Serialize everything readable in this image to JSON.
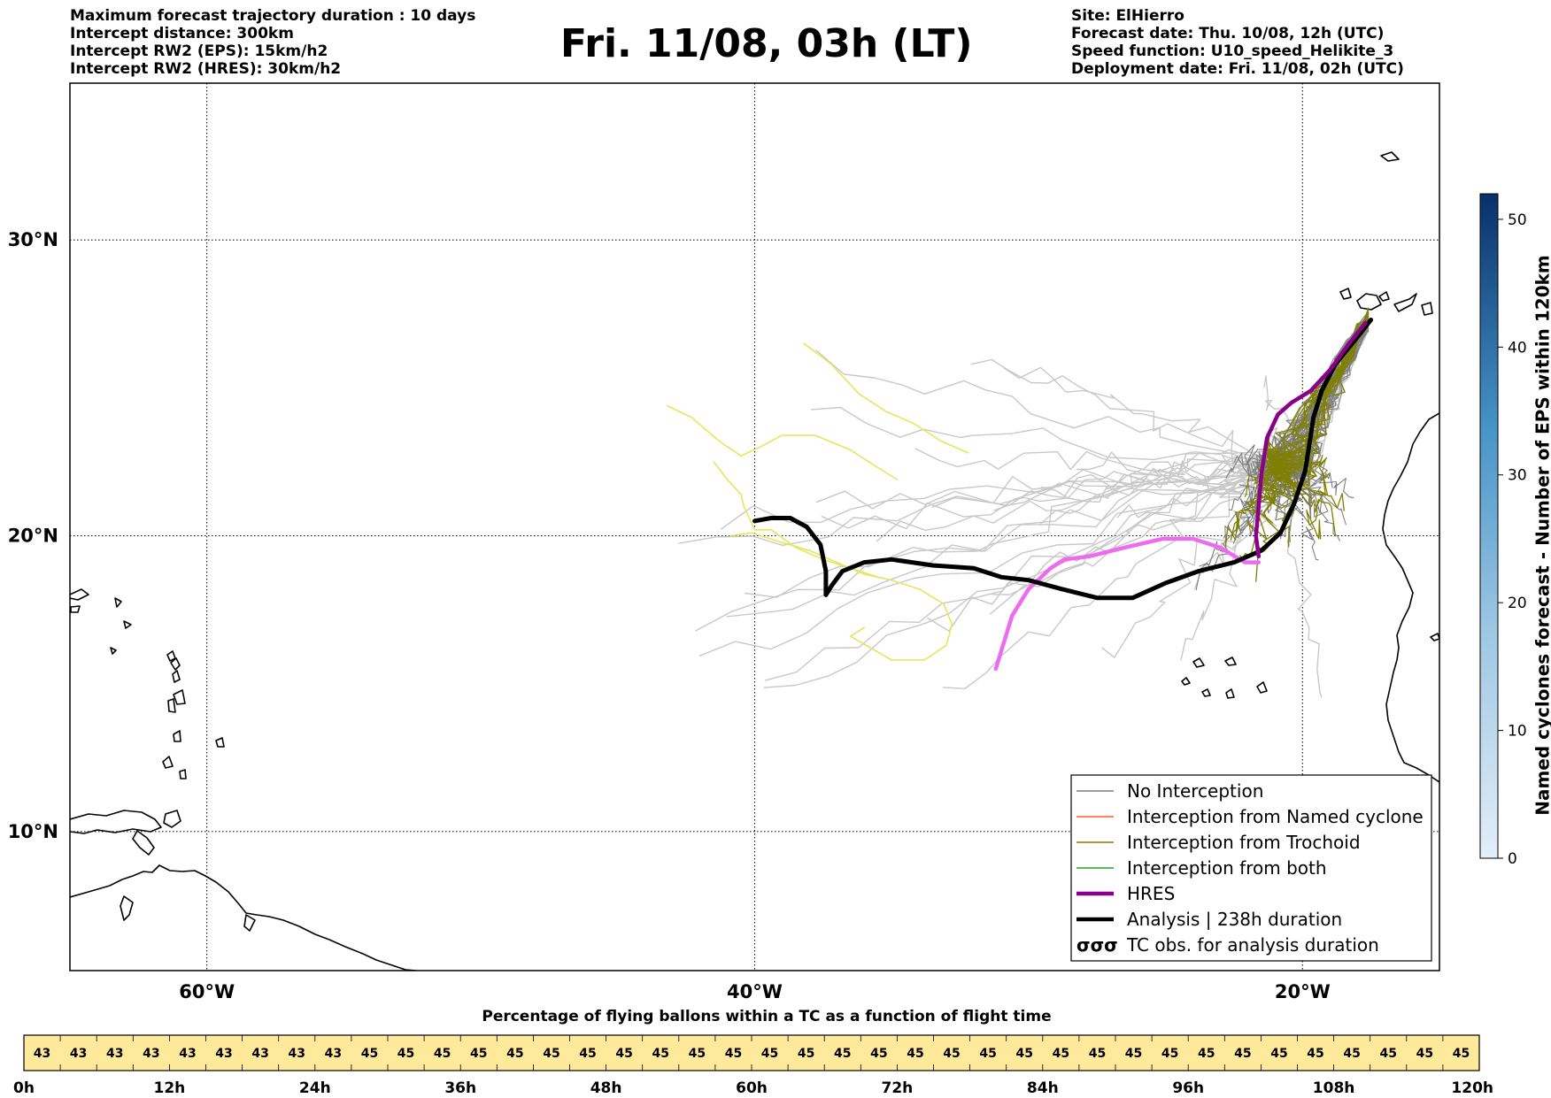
{
  "header": {
    "left_lines": [
      "Maximum forecast trajectory duration : 10 days",
      "Intercept distance: 300km",
      "Intercept RW2 (EPS):  15km/h2",
      "Intercept RW2 (HRES): 30km/h2"
    ],
    "title": "Fri. 11/08, 03h (LT)",
    "right_lines": [
      "Site: ElHierro",
      "Forecast date: Thu. 10/08, 12h (UTC)",
      "Speed function: U10_speed_Helikite_3",
      "Deployment date: Fri. 11/08, 02h (UTC)"
    ]
  },
  "colors": {
    "no_interception": "#7f7f7f",
    "ensemble_faint": "#c8c8c8",
    "named_cyclone": "#ff5a1f",
    "trochoid": "#808000",
    "both": "#2ca02c",
    "hres": "#8b008b",
    "analysis": "#000000",
    "hres_light": "#ee6aee",
    "yellow_track": "#e6e65a",
    "timeline_fill": "#ffe99a",
    "colorbar_low": "#e3eef9",
    "colorbar_high": "#08306b"
  },
  "chart_data": [
    {
      "type": "line",
      "map_extent": {
        "lon": [
          -65,
          -15
        ],
        "lat": [
          5.3,
          35.3
        ]
      },
      "x_ticks": [
        {
          "value": -60,
          "label": "60°W"
        },
        {
          "value": -40,
          "label": "40°W"
        },
        {
          "value": -20,
          "label": "20°W"
        }
      ],
      "y_ticks": [
        {
          "value": 30,
          "label": "30°N"
        },
        {
          "value": 20,
          "label": "20°N"
        },
        {
          "value": 10,
          "label": "10°N"
        }
      ],
      "grid": true,
      "legend": {
        "placement": "bottom-right",
        "items": [
          {
            "label": "No Interception",
            "style": "thin",
            "color": "#7f7f7f"
          },
          {
            "label": "Interception from Named cyclone",
            "style": "thin",
            "color": "#ff5a1f"
          },
          {
            "label": "Interception from Trochoid",
            "style": "thin",
            "color": "#808000"
          },
          {
            "label": "Interception from both",
            "style": "thin",
            "color": "#2ca02c"
          },
          {
            "label": "HRES",
            "style": "thick",
            "color": "#8b008b"
          },
          {
            "label": "Analysis | 238h duration",
            "style": "thick",
            "color": "#000000"
          },
          {
            "label": "TC obs. for analysis duration",
            "style": "symbol",
            "color": "#000000"
          }
        ]
      },
      "series": [
        {
          "name": "Analysis | 238h duration",
          "style": "analysis",
          "lon": [
            -17.5,
            -18.1,
            -18.8,
            -19.3,
            -19.6,
            -19.7,
            -19.9,
            -20.3,
            -20.8,
            -21.5,
            -22.5,
            -23.8,
            -25.0,
            -26.2,
            -27.5,
            -28.8,
            -30.0,
            -31.0,
            -32.0,
            -33.5,
            -35.0,
            -36.0,
            -36.8,
            -37.2,
            -37.4,
            -37.4,
            -37.6,
            -38.1,
            -38.7,
            -39.4,
            -40.0
          ],
          "lat": [
            27.3,
            26.6,
            25.8,
            24.9,
            24.0,
            23.4,
            22.2,
            21.1,
            20.1,
            19.5,
            19.1,
            18.8,
            18.4,
            17.9,
            17.9,
            18.2,
            18.5,
            18.6,
            18.9,
            19.0,
            19.2,
            19.1,
            18.8,
            18.3,
            18.0,
            18.8,
            19.7,
            20.3,
            20.6,
            20.6,
            20.5
          ]
        },
        {
          "name": "HRES",
          "style": "hres",
          "lon": [
            -17.7,
            -18.3,
            -19.0,
            -19.7,
            -20.4,
            -20.9,
            -21.3,
            -21.5,
            -21.6,
            -21.7,
            -21.6
          ],
          "lat": [
            27.2,
            26.5,
            25.6,
            24.9,
            24.5,
            24.1,
            23.3,
            22.1,
            21.0,
            20.0,
            19.3
          ]
        },
        {
          "name": "",
          "style": "hres_light",
          "lon": [
            -21.6,
            -22.1,
            -23.0,
            -24.0,
            -25.1,
            -26.5,
            -27.8,
            -28.7,
            -29.2,
            -30.0,
            -30.6,
            -31.2
          ],
          "lat": [
            19.1,
            19.1,
            19.6,
            19.9,
            19.9,
            19.6,
            19.3,
            19.2,
            18.9,
            18.2,
            17.3,
            15.5
          ]
        },
        {
          "name": "",
          "style": "yellow",
          "lon": [
            -38.2,
            -37.2,
            -36.2,
            -35.2,
            -34.2,
            -33.2,
            -32.2
          ],
          "lat": [
            26.5,
            25.8,
            24.8,
            24.2,
            23.8,
            23.2,
            22.8
          ]
        },
        {
          "name": "",
          "style": "yellow",
          "lon": [
            -43.2,
            -42.3,
            -41.3,
            -40.5,
            -39.8,
            -39.0,
            -37.8,
            -36.5,
            -35.5,
            -34.8
          ],
          "lat": [
            24.4,
            24.0,
            23.2,
            22.7,
            23.0,
            23.4,
            23.4,
            22.9,
            22.3,
            21.9
          ]
        },
        {
          "name": "",
          "style": "yellow",
          "lon": [
            -41.5,
            -41.0,
            -40.5,
            -40.4,
            -40.0,
            -39.4,
            -38.5,
            -37.5,
            -36.5,
            -35.5
          ],
          "lat": [
            22.5,
            21.9,
            21.4,
            21.0,
            20.2,
            20.2,
            19.6,
            19.2,
            18.9,
            18.6
          ]
        },
        {
          "name": "",
          "style": "yellow",
          "lon": [
            -40.9,
            -40.1,
            -39.1,
            -38.0,
            -37.0,
            -36.0,
            -35.0,
            -34.0,
            -33.1,
            -32.8,
            -33.0,
            -33.8,
            -35.0,
            -36.5,
            -36.0
          ],
          "lat": [
            20.0,
            20.1,
            19.8,
            19.5,
            19.1,
            18.7,
            18.5,
            18.2,
            17.7,
            17.0,
            16.3,
            15.8,
            15.8,
            16.6,
            16.9
          ]
        }
      ]
    },
    {
      "type": "bar",
      "title": "Percentage of flying ballons within a TC as a function of flight time",
      "values": [
        43,
        43,
        43,
        43,
        43,
        43,
        43,
        43,
        43,
        45,
        45,
        45,
        45,
        45,
        45,
        45,
        45,
        45,
        45,
        45,
        45,
        45,
        45,
        45,
        45,
        45,
        45,
        45,
        45,
        45,
        45,
        45,
        45,
        45,
        45,
        45,
        45,
        45,
        45,
        45
      ],
      "x_ticks": [
        "0h",
        "12h",
        "24h",
        "36h",
        "48h",
        "60h",
        "72h",
        "84h",
        "96h",
        "108h",
        "120h"
      ]
    },
    {
      "type": "heatmap",
      "label": "Named cyclones forecast - Number of EPS within 120km",
      "ticks": [
        0,
        10,
        20,
        30,
        40,
        50
      ],
      "range": [
        0,
        52
      ]
    }
  ]
}
